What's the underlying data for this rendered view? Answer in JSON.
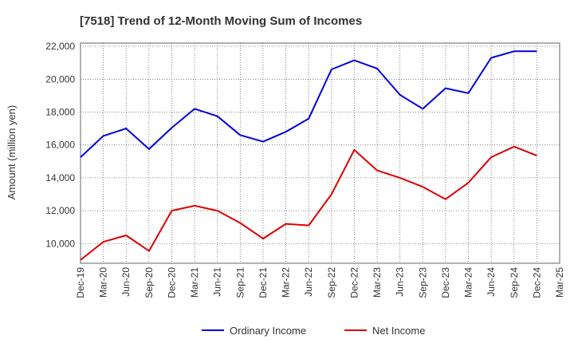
{
  "chart_data": {
    "type": "line",
    "title": "[7518]  Trend of 12-Month Moving Sum of Incomes",
    "xlabel": "",
    "ylabel": "Amount (million yen)",
    "ylim": [
      8800,
      22200
    ],
    "yticks": [
      10000,
      12000,
      14000,
      16000,
      18000,
      20000,
      22000
    ],
    "ytick_labels": [
      "10,000",
      "12,000",
      "14,000",
      "16,000",
      "18,000",
      "20,000",
      "22,000"
    ],
    "categories": [
      "Dec-19",
      "Mar-20",
      "Jun-20",
      "Sep-20",
      "Dec-20",
      "Mar-21",
      "Jun-21",
      "Sep-21",
      "Dec-21",
      "Mar-22",
      "Jun-22",
      "Sep-22",
      "Dec-22",
      "Mar-23",
      "Jun-23",
      "Sep-23",
      "Dec-23",
      "Mar-24",
      "Jun-24",
      "Sep-24",
      "Dec-24",
      "Mar-25"
    ],
    "grid": true,
    "legend_position": "bottom-center",
    "series": [
      {
        "name": "Ordinary Income",
        "color": "#0000dd",
        "values": [
          15250,
          16550,
          17000,
          15750,
          17050,
          18200,
          17750,
          16600,
          16200,
          16800,
          17600,
          20600,
          21150,
          20650,
          19050,
          18200,
          19450,
          19150,
          21300,
          21700,
          21700,
          null
        ]
      },
      {
        "name": "Net Income",
        "color": "#dd0000",
        "values": [
          9000,
          10100,
          10500,
          9550,
          12000,
          12300,
          12000,
          11250,
          10300,
          11200,
          11100,
          13000,
          15700,
          14450,
          14000,
          13450,
          12700,
          13700,
          15250,
          15900,
          15350,
          null
        ]
      }
    ]
  }
}
